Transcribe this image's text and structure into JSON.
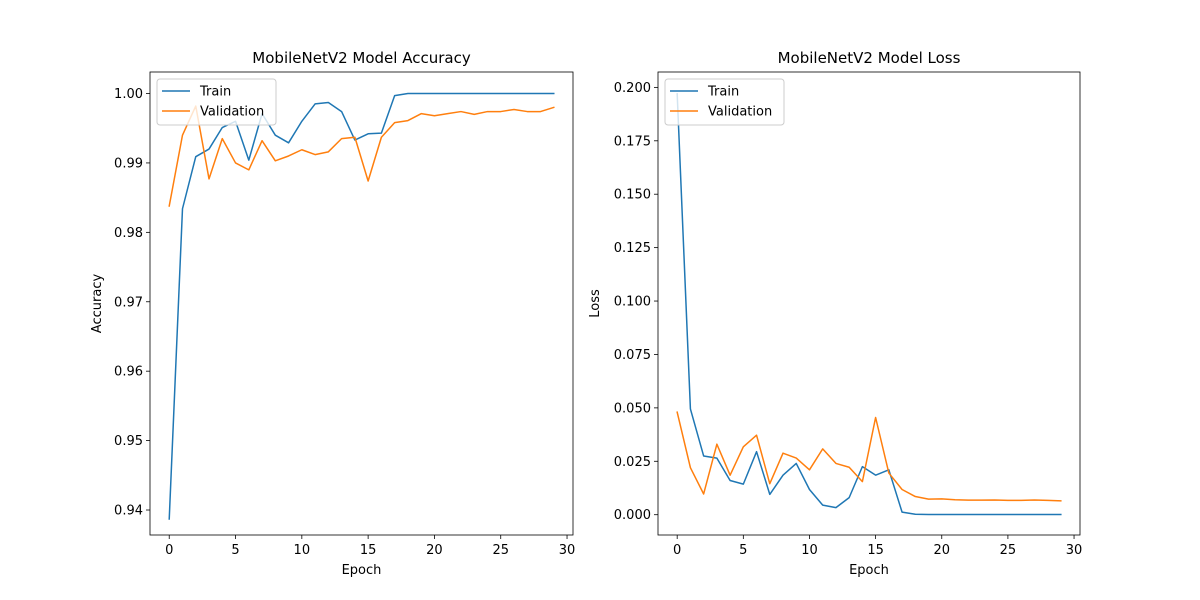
{
  "chart_data": [
    {
      "type": "line",
      "title": "MobileNetV2 Model Accuracy",
      "xlabel": "Epoch",
      "ylabel": "Accuracy",
      "xlim": [
        -1.45,
        30.45
      ],
      "ylim": [
        0.9364,
        1.0031
      ],
      "xticks": [
        0,
        5,
        10,
        15,
        20,
        25,
        30
      ],
      "yticks": [
        0.94,
        0.95,
        0.96,
        0.97,
        0.98,
        0.99,
        1.0
      ],
      "ytick_labels": [
        "0.94",
        "0.95",
        "0.96",
        "0.97",
        "0.98",
        "0.99",
        "1.00"
      ],
      "grid": false,
      "legend_position": "upper-left",
      "x": [
        0,
        1,
        2,
        3,
        4,
        5,
        6,
        7,
        8,
        9,
        10,
        11,
        12,
        13,
        14,
        15,
        16,
        17,
        18,
        19,
        20,
        21,
        22,
        23,
        24,
        25,
        26,
        27,
        28,
        29
      ],
      "series": [
        {
          "name": "Train",
          "color": "#1f77b4",
          "values": [
            0.9387,
            0.9834,
            0.9909,
            0.992,
            0.9951,
            0.996,
            0.9904,
            0.9971,
            0.994,
            0.9929,
            0.996,
            0.9985,
            0.9987,
            0.9974,
            0.9933,
            0.9942,
            0.9943,
            0.9997,
            1.0,
            1.0,
            1.0,
            1.0,
            1.0,
            1.0,
            1.0,
            1.0,
            1.0,
            1.0,
            1.0,
            1.0
          ]
        },
        {
          "name": "Validation",
          "color": "#ff7f0e",
          "values": [
            0.9838,
            0.994,
            0.9982,
            0.9877,
            0.9935,
            0.99,
            0.989,
            0.9932,
            0.9903,
            0.991,
            0.9919,
            0.9912,
            0.9916,
            0.9935,
            0.9937,
            0.9874,
            0.9937,
            0.9958,
            0.9961,
            0.9971,
            0.9968,
            0.9971,
            0.9974,
            0.997,
            0.9974,
            0.9974,
            0.9977,
            0.9974,
            0.9974,
            0.998
          ]
        }
      ]
    },
    {
      "type": "line",
      "title": "MobileNetV2 Model Loss",
      "xlabel": "Epoch",
      "ylabel": "Loss",
      "xlim": [
        -1.45,
        30.45
      ],
      "ylim": [
        -0.0095,
        0.2072
      ],
      "xticks": [
        0,
        5,
        10,
        15,
        20,
        25,
        30
      ],
      "yticks": [
        0.0,
        0.025,
        0.05,
        0.075,
        0.1,
        0.125,
        0.15,
        0.175,
        0.2
      ],
      "ytick_labels": [
        "0.000",
        "0.025",
        "0.050",
        "0.075",
        "0.100",
        "0.125",
        "0.150",
        "0.175",
        "0.200"
      ],
      "grid": false,
      "legend_position": "upper-left",
      "x": [
        0,
        1,
        2,
        3,
        4,
        5,
        6,
        7,
        8,
        9,
        10,
        11,
        12,
        13,
        14,
        15,
        16,
        17,
        18,
        19,
        20,
        21,
        22,
        23,
        24,
        25,
        26,
        27,
        28,
        29
      ],
      "series": [
        {
          "name": "Train",
          "color": "#1f77b4",
          "values": [
            0.197,
            0.0495,
            0.0275,
            0.0265,
            0.016,
            0.0143,
            0.0295,
            0.0095,
            0.0185,
            0.024,
            0.0118,
            0.0045,
            0.0033,
            0.008,
            0.0225,
            0.0185,
            0.021,
            0.0012,
            0.0002,
            0.0001,
            0.0001,
            0.0001,
            0.0001,
            0.0001,
            0.0001,
            0.0001,
            0.0001,
            0.0001,
            0.0001,
            0.0001
          ]
        },
        {
          "name": "Validation",
          "color": "#ff7f0e",
          "values": [
            0.048,
            0.022,
            0.0097,
            0.033,
            0.0185,
            0.0318,
            0.0372,
            0.0145,
            0.0288,
            0.0265,
            0.021,
            0.0308,
            0.024,
            0.0222,
            0.0155,
            0.0455,
            0.0195,
            0.0118,
            0.0085,
            0.0073,
            0.0074,
            0.007,
            0.0068,
            0.0068,
            0.0069,
            0.0067,
            0.0067,
            0.0069,
            0.0067,
            0.0065
          ]
        }
      ]
    }
  ]
}
